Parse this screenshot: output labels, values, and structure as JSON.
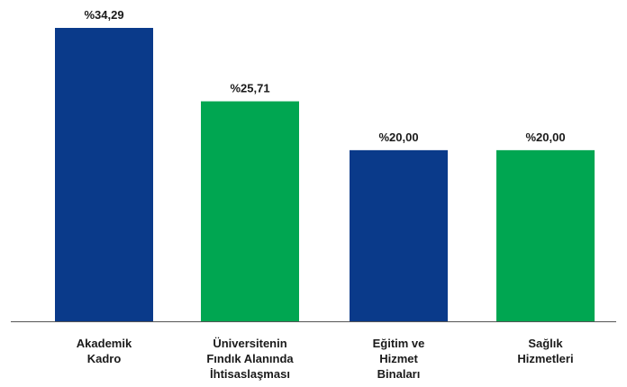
{
  "chart_data": {
    "type": "bar",
    "categories": [
      [
        "Akademik",
        "Kadro"
      ],
      [
        "Üniversitenin",
        "Fındık Alanında",
        "İhtisaslaşması"
      ],
      [
        "Eğitim ve",
        "Hizmet",
        "Binaları"
      ],
      [
        "Sağlık",
        "Hizmetleri"
      ]
    ],
    "values": [
      34.29,
      25.71,
      20.0,
      20.0
    ],
    "data_labels": [
      "%34,29",
      "%25,71",
      "%20,00",
      "%20,00"
    ],
    "colors": [
      "#0a3a8a",
      "#00a651",
      "#0a3a8a",
      "#00a651"
    ],
    "ylim": [
      0,
      34.29
    ],
    "grid": false,
    "legend": "none"
  }
}
